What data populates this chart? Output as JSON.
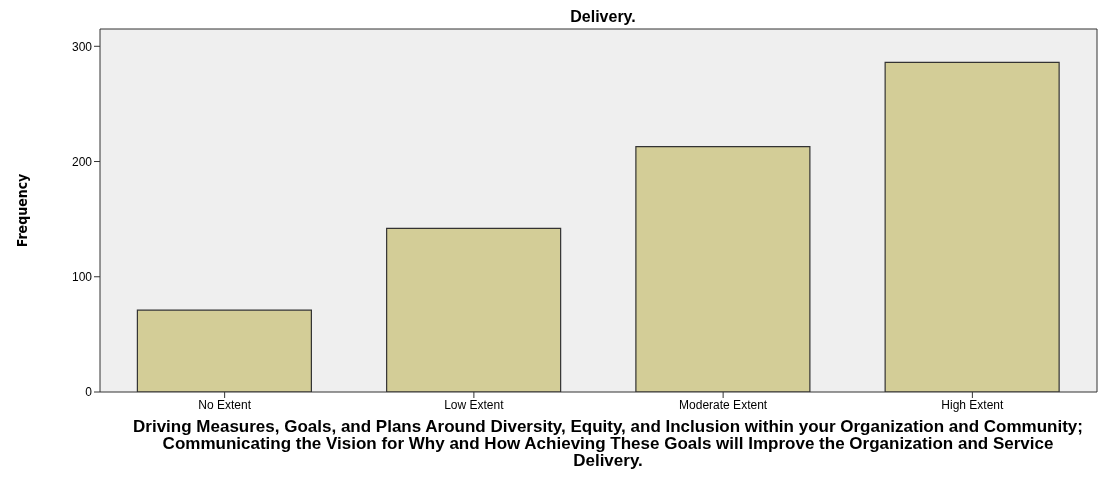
{
  "chart_data": {
    "type": "bar",
    "title": "Delivery.",
    "xlabel": "Driving Measures, Goals, and Plans Around Diversity, Equity, and Inclusion within your Organization and Community; Communicating the Vision for Why and How Achieving These Goals will Improve the Organization and Service Delivery.",
    "ylabel": "Frequency",
    "categories": [
      "No Extent",
      "Low Extent",
      "Moderate Extent",
      "High Extent"
    ],
    "values": [
      71,
      142,
      213,
      286
    ],
    "color": "#d3cd97",
    "ylim": [
      0,
      315
    ],
    "yticks": [
      0,
      100,
      200,
      300
    ],
    "grid": false,
    "legend": false
  }
}
